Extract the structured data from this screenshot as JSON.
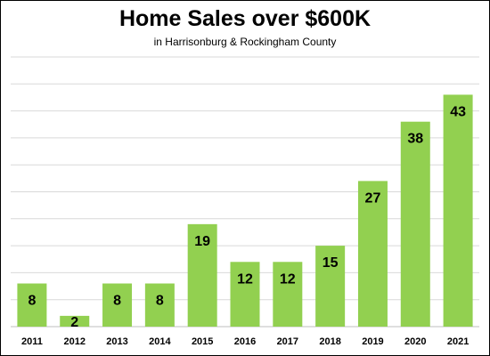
{
  "chart_data": {
    "type": "bar",
    "title": "Home Sales over $600K",
    "subtitle": "in Harrisonburg & Rockingham County",
    "categories": [
      "2011",
      "2012",
      "2013",
      "2014",
      "2015",
      "2016",
      "2017",
      "2018",
      "2019",
      "2020",
      "2021"
    ],
    "values": [
      8,
      2,
      8,
      8,
      19,
      12,
      12,
      15,
      27,
      38,
      43
    ],
    "ylim": [
      0,
      50
    ],
    "grid": true,
    "legend": "none",
    "colors": {
      "bar": "#92d050",
      "grid": "#d9d9d9",
      "axis": "#bfbfbf"
    }
  }
}
